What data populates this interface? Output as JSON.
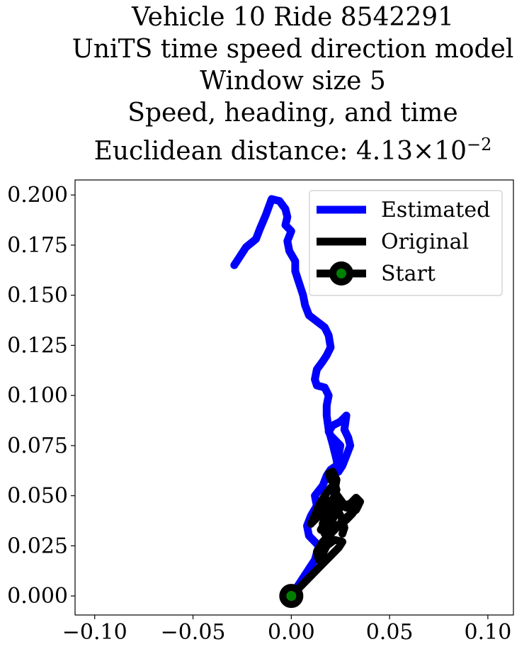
{
  "chart_data": {
    "type": "line",
    "title_lines": [
      "Vehicle 10 Ride 8542291",
      "UniTS time speed direction model",
      "Window size 5",
      "Speed, heading, and time"
    ],
    "distance_label": "Euclidean distance: 4.13",
    "distance_exponent_base": "10",
    "distance_exponent": "−2",
    "xlim": [
      -0.11,
      0.113
    ],
    "ylim": [
      -0.0095,
      0.2075
    ],
    "x_ticks": [
      -0.1,
      -0.05,
      0.0,
      0.05,
      0.1
    ],
    "x_tick_labels": [
      "−0.10",
      "−0.05",
      "0.00",
      "0.05",
      "0.10"
    ],
    "y_ticks": [
      0.0,
      0.025,
      0.05,
      0.075,
      0.1,
      0.125,
      0.15,
      0.175,
      0.2
    ],
    "y_tick_labels": [
      "0.000",
      "0.025",
      "0.050",
      "0.075",
      "0.100",
      "0.125",
      "0.150",
      "0.175",
      "0.200"
    ],
    "legend_position": "top-right",
    "series": [
      {
        "name": "Estimated",
        "color": "#0000ff",
        "x": [
          0.0,
          0.004,
          0.008,
          0.012,
          0.014,
          0.009,
          0.008,
          0.01,
          0.013,
          0.012,
          0.016,
          0.018,
          0.02,
          0.023,
          0.024,
          0.025,
          0.022,
          0.02,
          0.019,
          0.021,
          0.025,
          0.028,
          0.027,
          0.029,
          0.03,
          0.028,
          0.026,
          0.024,
          0.023,
          0.021,
          0.019,
          0.018,
          0.018,
          0.019,
          0.017,
          0.013,
          0.012,
          0.013,
          0.016,
          0.018,
          0.02,
          0.019,
          0.017,
          0.013,
          0.009,
          0.007,
          0.006,
          0.004,
          0.002,
          0.002,
          -0.001,
          -0.002,
          0.0,
          -0.003,
          -0.002,
          -0.003,
          -0.006,
          -0.01,
          -0.013,
          -0.016,
          -0.018,
          -0.023,
          -0.027,
          -0.029
        ],
        "y": [
          0.0,
          0.006,
          0.012,
          0.018,
          0.025,
          0.03,
          0.035,
          0.04,
          0.045,
          0.05,
          0.055,
          0.06,
          0.063,
          0.065,
          0.07,
          0.075,
          0.078,
          0.08,
          0.082,
          0.085,
          0.087,
          0.09,
          0.083,
          0.079,
          0.075,
          0.07,
          0.065,
          0.062,
          0.068,
          0.076,
          0.083,
          0.09,
          0.095,
          0.1,
          0.104,
          0.105,
          0.108,
          0.113,
          0.117,
          0.12,
          0.124,
          0.13,
          0.134,
          0.137,
          0.14,
          0.145,
          0.15,
          0.156,
          0.162,
          0.167,
          0.172,
          0.177,
          0.182,
          0.185,
          0.189,
          0.193,
          0.197,
          0.198,
          0.19,
          0.183,
          0.178,
          0.174,
          0.168,
          0.165
        ]
      },
      {
        "name": "Original",
        "color": "#000000",
        "x": [
          0.0,
          0.004,
          0.008,
          0.012,
          0.016,
          0.02,
          0.024,
          0.026,
          0.022,
          0.018,
          0.016,
          0.014,
          0.013,
          0.016,
          0.02,
          0.024,
          0.028,
          0.031,
          0.033,
          0.03,
          0.026,
          0.023,
          0.021,
          0.019,
          0.017,
          0.016,
          0.018,
          0.02,
          0.022,
          0.023,
          0.022,
          0.02,
          0.019,
          0.021,
          0.023,
          0.022,
          0.025,
          0.028,
          0.03,
          0.033,
          0.035,
          0.033,
          0.029,
          0.026,
          0.022,
          0.019,
          0.015,
          0.018,
          0.021,
          0.023,
          0.022,
          0.02,
          0.017,
          0.014,
          0.012,
          0.01,
          0.013,
          0.016,
          0.018,
          0.021,
          0.024,
          0.026,
          0.027,
          0.026
        ],
        "y": [
          0.0,
          0.004,
          0.008,
          0.012,
          0.016,
          0.02,
          0.024,
          0.027,
          0.028,
          0.025,
          0.021,
          0.018,
          0.022,
          0.027,
          0.031,
          0.035,
          0.038,
          0.041,
          0.044,
          0.046,
          0.045,
          0.042,
          0.038,
          0.034,
          0.031,
          0.036,
          0.041,
          0.046,
          0.05,
          0.053,
          0.056,
          0.058,
          0.061,
          0.062,
          0.058,
          0.052,
          0.048,
          0.044,
          0.046,
          0.049,
          0.047,
          0.043,
          0.04,
          0.037,
          0.034,
          0.031,
          0.033,
          0.038,
          0.042,
          0.047,
          0.051,
          0.054,
          0.05,
          0.045,
          0.04,
          0.036,
          0.039,
          0.044,
          0.048,
          0.046,
          0.042,
          0.038,
          0.034,
          0.031
        ]
      }
    ],
    "start_label": "Start",
    "start_point": {
      "x": 0.0,
      "y": 0.0
    },
    "start_fill_color": "#008000",
    "start_edge_color": "#000000"
  }
}
